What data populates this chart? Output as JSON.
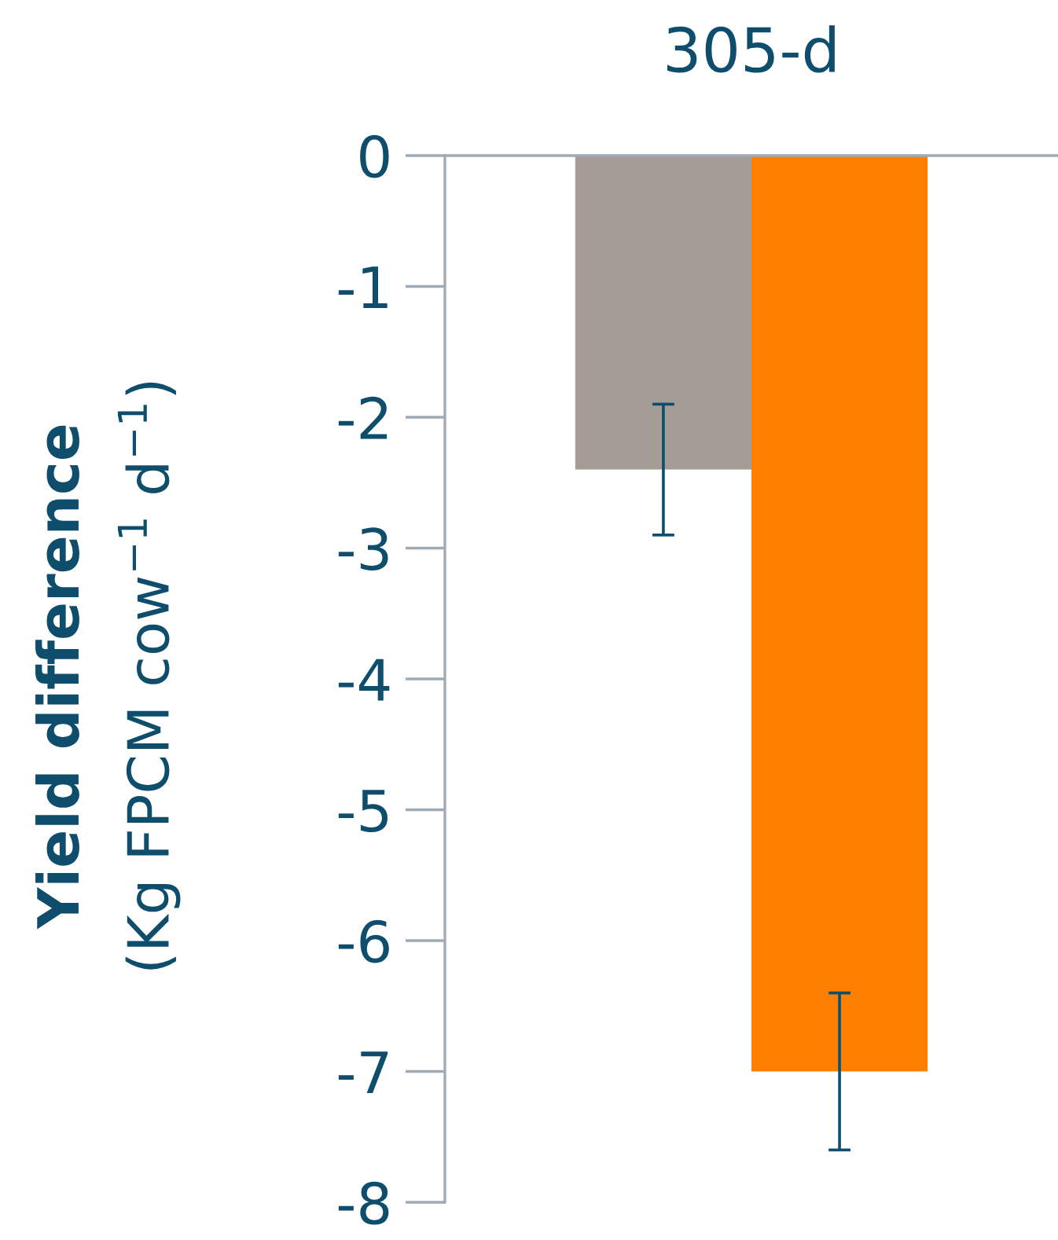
{
  "chart_data": {
    "type": "bar",
    "title": "305-d",
    "ylabel": "Yield difference\n(Kg FPCM cow$^{−1}$ d$^{−1}$)",
    "categories": [
      null,
      null
    ],
    "values": [
      -2.4,
      -7.0
    ],
    "colors": [
      "#a59d95",
      "#ff7f00"
    ],
    "errors": [
      0.5,
      0.6
    ],
    "ylim": [
      -8,
      0
    ],
    "yticks": [
      -8,
      -7,
      -6,
      -5,
      -4,
      -3,
      -2,
      -1,
      0
    ],
    "grid": false,
    "legend": false
  }
}
